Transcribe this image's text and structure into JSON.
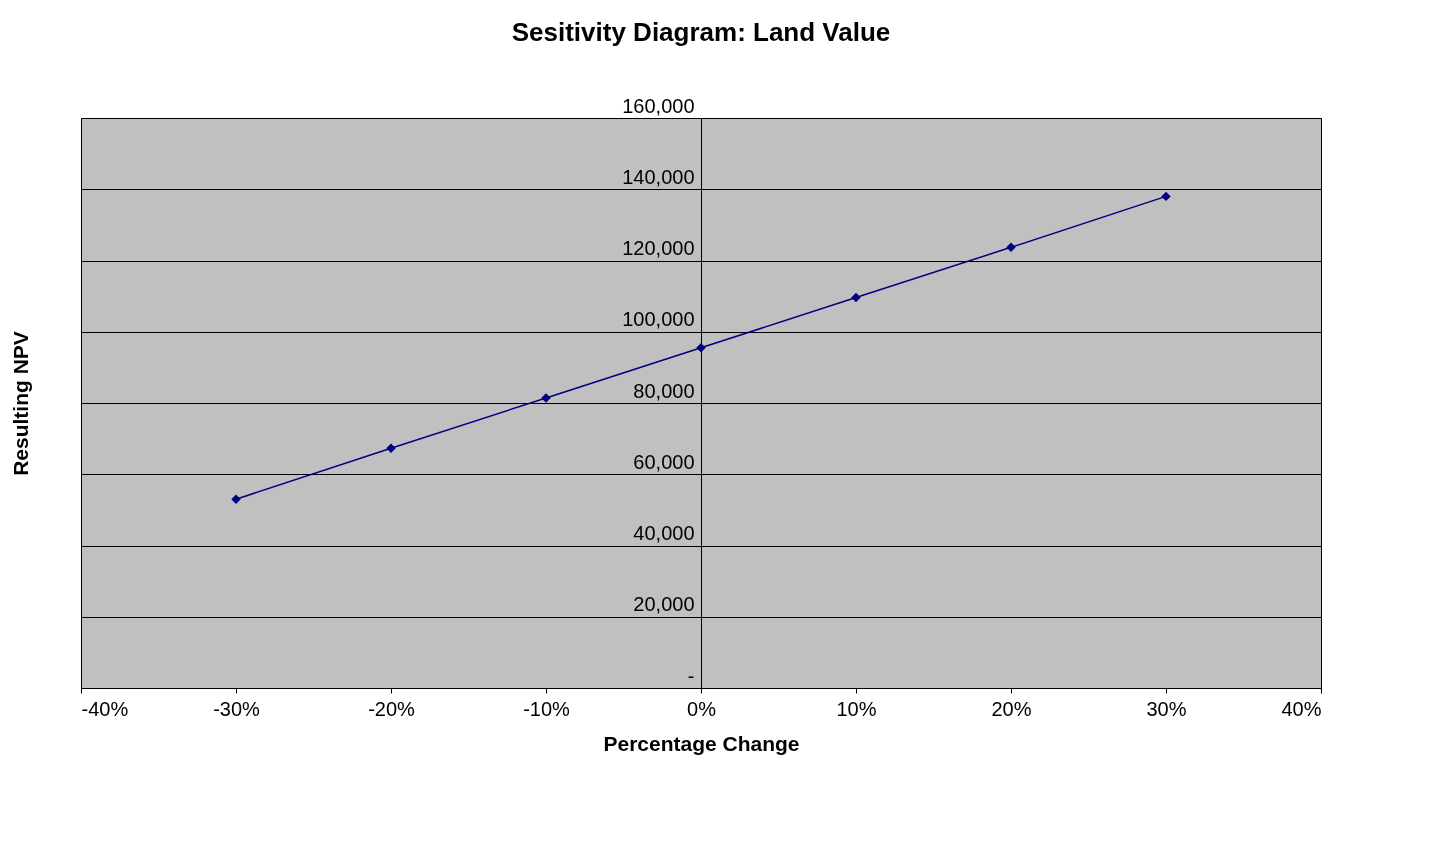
{
  "chart_data": {
    "type": "line",
    "title": "Sesitivity Diagram: Land Value",
    "xlabel": "Percentage Change",
    "ylabel": "Resulting NPV",
    "x": [
      -30,
      -20,
      -10,
      0,
      10,
      20,
      30
    ],
    "series": [
      {
        "color": "#000080",
        "values": [
          53000,
          67300,
          81400,
          95500,
          109600,
          123700,
          138000
        ]
      }
    ],
    "xlim": [
      -40,
      40
    ],
    "xticks": [
      {
        "value": -40,
        "label": "-40%"
      },
      {
        "value": -30,
        "label": "-30%"
      },
      {
        "value": -20,
        "label": "-20%"
      },
      {
        "value": -10,
        "label": "-10%"
      },
      {
        "value": 0,
        "label": "0%"
      },
      {
        "value": 10,
        "label": "10%"
      },
      {
        "value": 20,
        "label": "20%"
      },
      {
        "value": 30,
        "label": "30%"
      },
      {
        "value": 40,
        "label": "40%"
      }
    ],
    "ylim": [
      0,
      160000
    ],
    "yticks": [
      {
        "value": 0,
        "label": "-"
      },
      {
        "value": 20000,
        "label": "20,000"
      },
      {
        "value": 40000,
        "label": "40,000"
      },
      {
        "value": 60000,
        "label": "60,000"
      },
      {
        "value": 80000,
        "label": "80,000"
      },
      {
        "value": 100000,
        "label": "100,000"
      },
      {
        "value": 120000,
        "label": "120,000"
      },
      {
        "value": 140000,
        "label": "140,000"
      },
      {
        "value": 160000,
        "label": "160,000"
      }
    ],
    "grid": "y",
    "marker": "diamond",
    "line_style": "solid",
    "legend": false
  }
}
